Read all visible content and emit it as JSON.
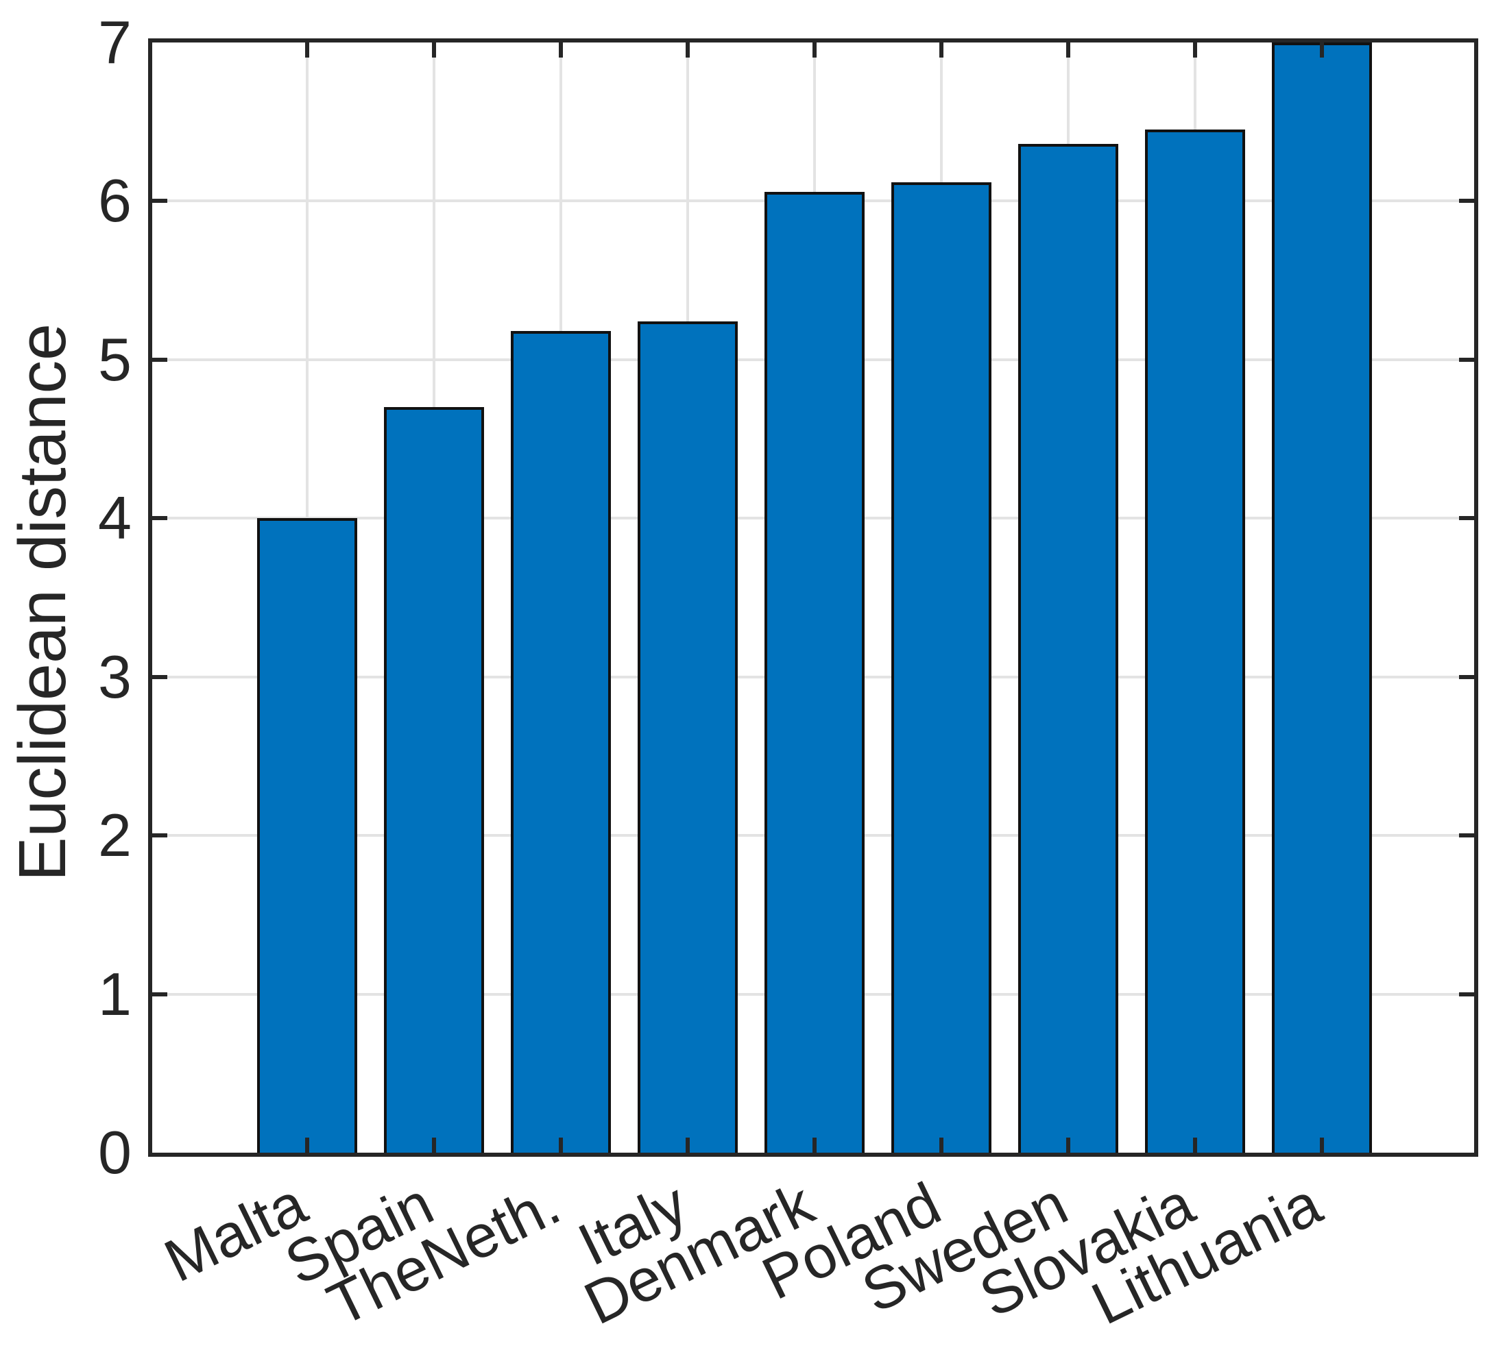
{
  "chart_data": {
    "type": "bar",
    "ylabel": "Euclidean distance",
    "categories": [
      "Malta",
      "Spain",
      "TheNeth.",
      "Italy",
      "Denmark",
      "Poland",
      "Sweden",
      "Slovakia",
      "Lithuania"
    ],
    "values": [
      4.0,
      4.7,
      5.18,
      5.24,
      6.06,
      6.12,
      6.36,
      6.45,
      7.0
    ],
    "ylim": [
      0,
      7
    ],
    "yticks": [
      0,
      1,
      2,
      3,
      4,
      5,
      6,
      7
    ],
    "grid": true,
    "x_tick_angle_deg": 26,
    "legend_position": "none",
    "colors": {
      "bar_fill": "#0072BD",
      "bar_edge": "#111111",
      "axis": "#262626",
      "grid": "#E3E3E3",
      "tick_label": "#262626",
      "background": "#FFFFFF"
    }
  }
}
